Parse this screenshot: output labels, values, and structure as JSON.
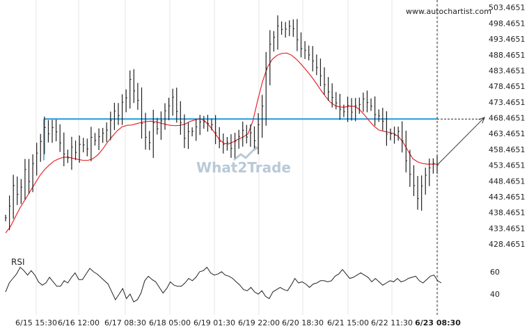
{
  "source_label": "www.autochartist.com",
  "watermark": {
    "text": "What2Trade",
    "color": "#b9c9d8"
  },
  "colors": {
    "background": "#ffffff",
    "price": "#1e1e1e",
    "moving_average": "#e8262a",
    "level_line": "#2f9fe0",
    "forecast": "#333333",
    "rsi": "#222222",
    "grid_x": "#e6e6e6"
  },
  "chart_data": [
    {
      "type": "line",
      "title": "",
      "xlabel": "",
      "ylabel": "",
      "x_ticks": [
        "6/15 15:30",
        "6/16 12:00",
        "6/17 08:30",
        "6/18 05:00",
        "6/19 01:30",
        "6/19 22:00",
        "6/20 18:30",
        "6/21 15:00",
        "6/22 11:30",
        "6/23 08:30"
      ],
      "y_ticks": [
        503.4651,
        498.4651,
        493.4651,
        488.4651,
        483.4651,
        478.4651,
        473.4651,
        468.4651,
        463.4651,
        458.4651,
        453.4651,
        448.4651,
        443.4651,
        438.4651,
        433.4651,
        428.4651
      ],
      "ylim": [
        426.5,
        504.5
      ],
      "grid": "vertical lines at time ticks",
      "series": [
        {
          "role": "price",
          "style": "high-low bars",
          "values": [
            436.8,
            440.5,
            447.0,
            444.2,
            446.5,
            452.1,
            448.3,
            454.0,
            457.3,
            461.0,
            465.4,
            463.4,
            465.4,
            464.0,
            460.5,
            457.0,
            455.8,
            459.2,
            457.5,
            460.1,
            459.9,
            458.6,
            462.3,
            461.3,
            462.5,
            463.6,
            464.6,
            467.7,
            470.6,
            469.2,
            473.4,
            474.8,
            480.6,
            477.0,
            474.0,
            466.7,
            462.3,
            460.6,
            466.9,
            465.0,
            467.5,
            470.7,
            472.3,
            475.0,
            470.5,
            466.9,
            462.0,
            464.1,
            464.2,
            465.6,
            467.2,
            467.2,
            466.7,
            466.3,
            463.7,
            461.0,
            460.1,
            460.7,
            458.8,
            461.1,
            462.6,
            464.5,
            462.4,
            463.7,
            461.2,
            466.3,
            472.2,
            484.0,
            491.8,
            494.0,
            497.6,
            496.5,
            496.6,
            497.5,
            496.7,
            493.2,
            490.4,
            489.9,
            488.4,
            486.5,
            484.4,
            481.8,
            479.0,
            476.7,
            474.9,
            473.2,
            471.2,
            470.4,
            472.4,
            470.3,
            472.3,
            472.7,
            474.5,
            473.3,
            472.2,
            469.5,
            469.1,
            467.4,
            463.3,
            463.4,
            463.0,
            464.2,
            461.2,
            454.9,
            450.6,
            447.0,
            442.9,
            446.9,
            450.3,
            452.6,
            454.1,
            453.5
          ],
          "last": 453.5
        },
        {
          "role": "moving average",
          "values": [
            432,
            434,
            437,
            440,
            442.5,
            445,
            447.5,
            450,
            452,
            453.5,
            454.8,
            455.5,
            456,
            456,
            455.6,
            455.3,
            455,
            455,
            455.5,
            456.7,
            458.5,
            460.7,
            462.6,
            464.3,
            465.6,
            466.1,
            466.2,
            466.6,
            467.0,
            467.3,
            467.4,
            467.2,
            466.8,
            466.4,
            466.1,
            466.0,
            466.1,
            466.5,
            467.3,
            467.8,
            468.2,
            467.6,
            466.0,
            464.0,
            461.8,
            460.4,
            460.2,
            460.9,
            461.7,
            462.4,
            463.4,
            467.5,
            474.0,
            480.0,
            484.5,
            487.0,
            488.3,
            488.9,
            489.0,
            488.3,
            487.0,
            485.4,
            483.6,
            481.7,
            479.6,
            477.3,
            475.2,
            473.4,
            472.3,
            471.9,
            471.9,
            472.2,
            472.1,
            471.1,
            469.4,
            467.5,
            465.8,
            464.6,
            464.2,
            463.9,
            463.5,
            462.6,
            460.7,
            458.0,
            455.5,
            454.5,
            454.0,
            453.8,
            453.8,
            453.8
          ]
        },
        {
          "role": "horizontal level",
          "value": 468.1
        },
        {
          "role": "forecast",
          "start": {
            "time": "6/23 08:30",
            "value": 453.5
          },
          "end": {
            "value": 468.6
          }
        }
      ]
    },
    {
      "type": "line",
      "title": "RSI",
      "y_ticks": [
        60,
        40
      ],
      "ylim": [
        27,
        68
      ],
      "series": [
        {
          "name": "RSI",
          "values": [
            42,
            50,
            54,
            58,
            64,
            61,
            57,
            61,
            57,
            51,
            48,
            50,
            55,
            51,
            47,
            47,
            52,
            50,
            55,
            59,
            53,
            53,
            58,
            63,
            60,
            58,
            55,
            52,
            49,
            42,
            35,
            40,
            45,
            36,
            40,
            33,
            35,
            41,
            52,
            56,
            53,
            51,
            46,
            41,
            45,
            51,
            48,
            47,
            47,
            50,
            54,
            52,
            55,
            60,
            61,
            64,
            59,
            57,
            58,
            60,
            57,
            56,
            54,
            51,
            48,
            44,
            43,
            46,
            42,
            40,
            43,
            38,
            36,
            42,
            44,
            46,
            44,
            43,
            48,
            54,
            50,
            51,
            49,
            46,
            49,
            50,
            52,
            52,
            51,
            52,
            56,
            58,
            62,
            58,
            54,
            55,
            57,
            59,
            57,
            55,
            51,
            54,
            51,
            48,
            50,
            52,
            51,
            54,
            51,
            52,
            54,
            55,
            56,
            52,
            50,
            53,
            56,
            57,
            52,
            50
          ]
        }
      ]
    }
  ]
}
